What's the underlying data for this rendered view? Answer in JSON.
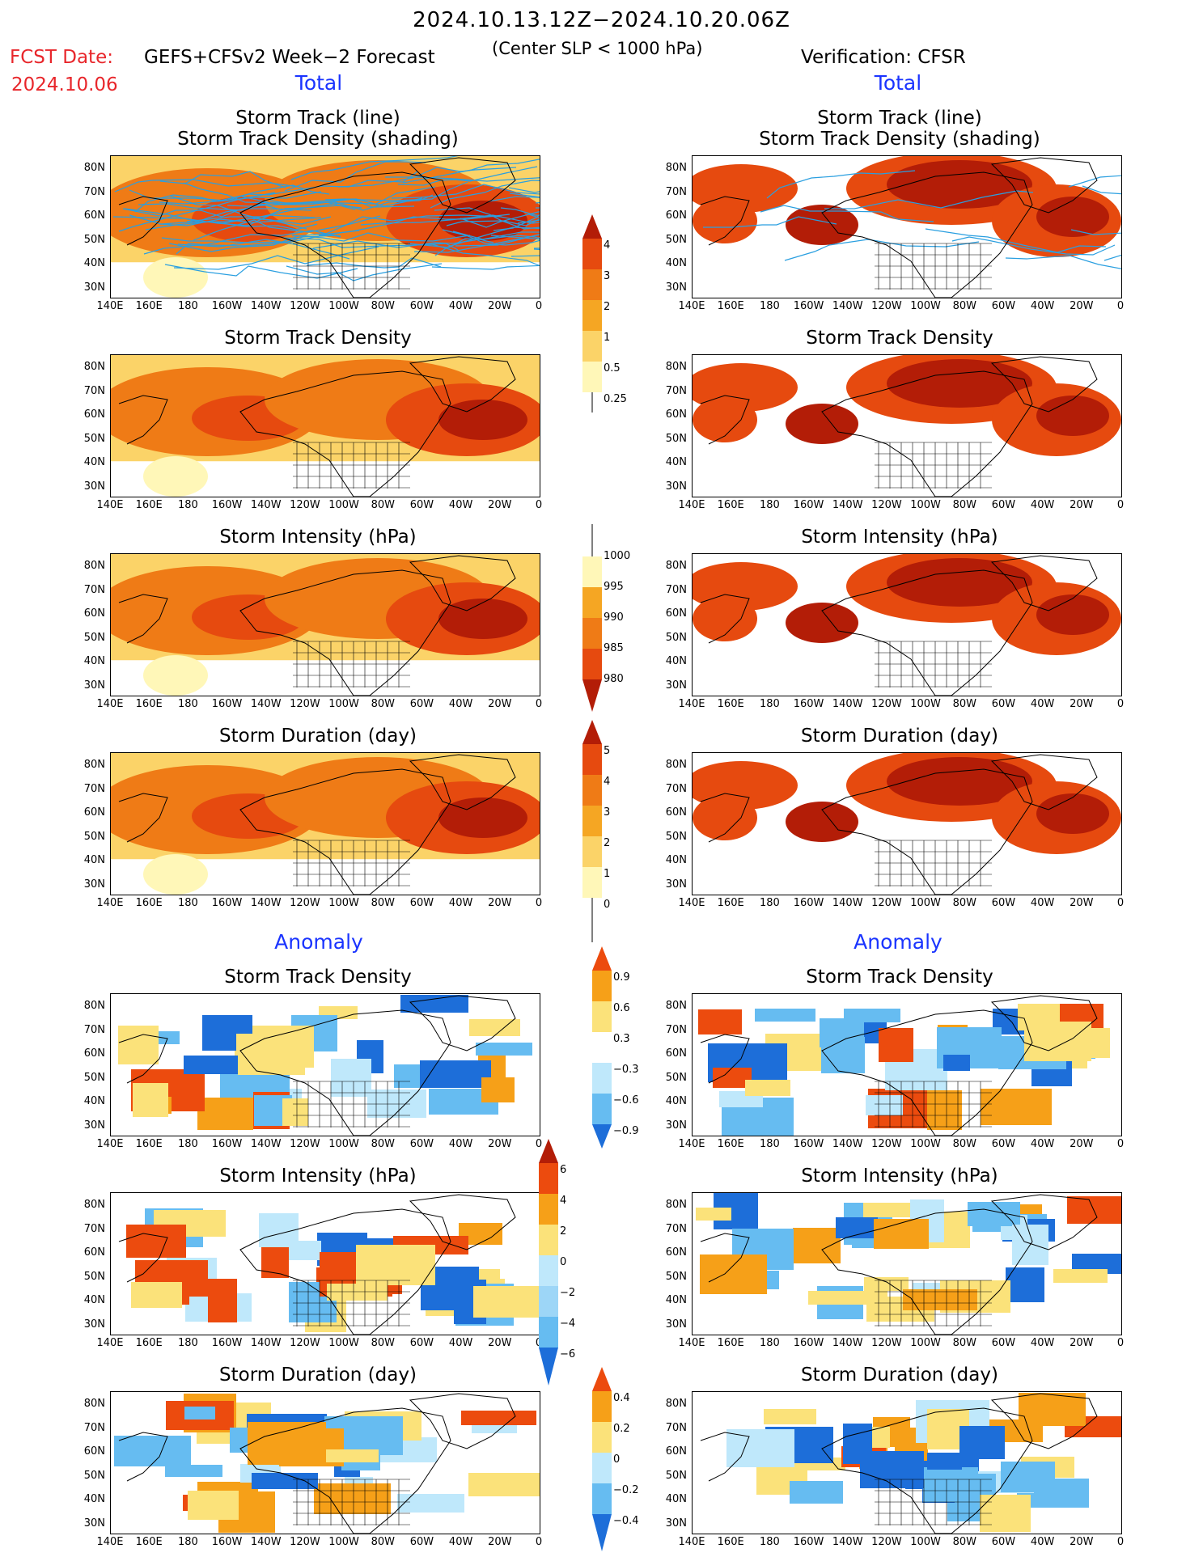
{
  "header": {
    "title": "2024.10.13.12Z−2024.10.20.06Z",
    "fcst_label": "FCST Date:",
    "model": "GEFS+CFSv2 Week−2 Forecast",
    "center_slp": "(Center SLP < 1000 hPa)",
    "verification": "Verification: CFSR",
    "fcst_date": "2024.10.06"
  },
  "sections": {
    "total": "Total",
    "anomaly": "Anomaly"
  },
  "panel_titles": {
    "track_line": "Storm Track (line)",
    "track_shading": "Storm Track Density (shading)",
    "density": "Storm Track Density",
    "intensity": "Storm Intensity (hPa)",
    "duration": "Storm Duration (day)"
  },
  "axes": {
    "lat_labels": [
      "80N",
      "70N",
      "60N",
      "50N",
      "40N",
      "30N"
    ],
    "lon_labels": [
      "140E",
      "160E",
      "180",
      "160W",
      "140W",
      "120W",
      "100W",
      "80W",
      "60W",
      "40W",
      "20W",
      "0"
    ]
  },
  "colorbars": {
    "density_total": [
      "4",
      "3",
      "2",
      "1",
      "0.5",
      "0.25"
    ],
    "intensity_total": [
      "1000",
      "995",
      "990",
      "985",
      "980"
    ],
    "duration_total": [
      "5",
      "4",
      "3",
      "2",
      "1",
      "0"
    ],
    "density_anom": [
      "0.9",
      "0.6",
      "0.3",
      "−0.3",
      "−0.6",
      "−0.9"
    ],
    "intensity_anom": [
      "6",
      "4",
      "2",
      "0",
      "−2",
      "−4",
      "−6"
    ],
    "duration_anom": [
      "0.4",
      "0.2",
      "0",
      "−0.2",
      "−0.4"
    ]
  },
  "colors": {
    "warm": [
      "#fff7b8",
      "#fbd368",
      "#f5a623",
      "#ef7b16",
      "#e64a0f",
      "#b31d07"
    ],
    "anom_pos": [
      "#fbe27a",
      "#f6a018",
      "#ec4b0e"
    ],
    "anom_neg": [
      "#bfe8fb",
      "#66bcf1",
      "#1d6ed9"
    ],
    "track": "#2a9fe0",
    "title_blue": "#1a34ff",
    "header_red": "#e8262b"
  }
}
